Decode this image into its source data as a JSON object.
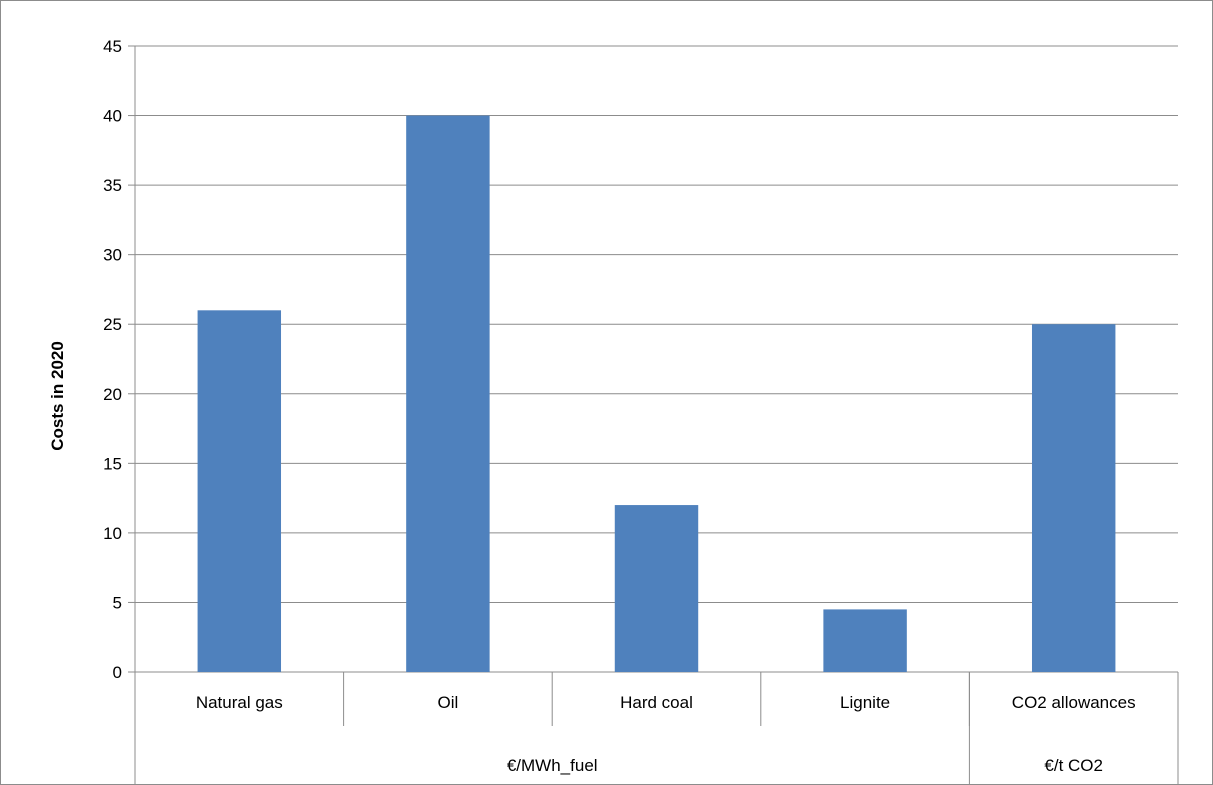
{
  "chart_data": {
    "type": "bar",
    "categories": [
      "Natural gas",
      "Oil",
      "Hard coal",
      "Lignite",
      "CO2 allowances"
    ],
    "values": [
      26,
      40,
      12,
      4.5,
      25
    ],
    "groups": [
      {
        "label": "€/MWh_fuel",
        "categories": [
          "Natural gas",
          "Oil",
          "Hard coal",
          "Lignite"
        ]
      },
      {
        "label": "€/t CO2",
        "categories": [
          "CO2 allowances"
        ]
      }
    ],
    "title": "",
    "xlabel": "",
    "ylabel": "Costs in 2020",
    "ylim": [
      0,
      45
    ],
    "yticks": [
      0,
      5,
      10,
      15,
      20,
      25,
      30,
      35,
      40,
      45
    ],
    "grid": true,
    "legend": "none",
    "bar_color": "#4f81bd"
  }
}
